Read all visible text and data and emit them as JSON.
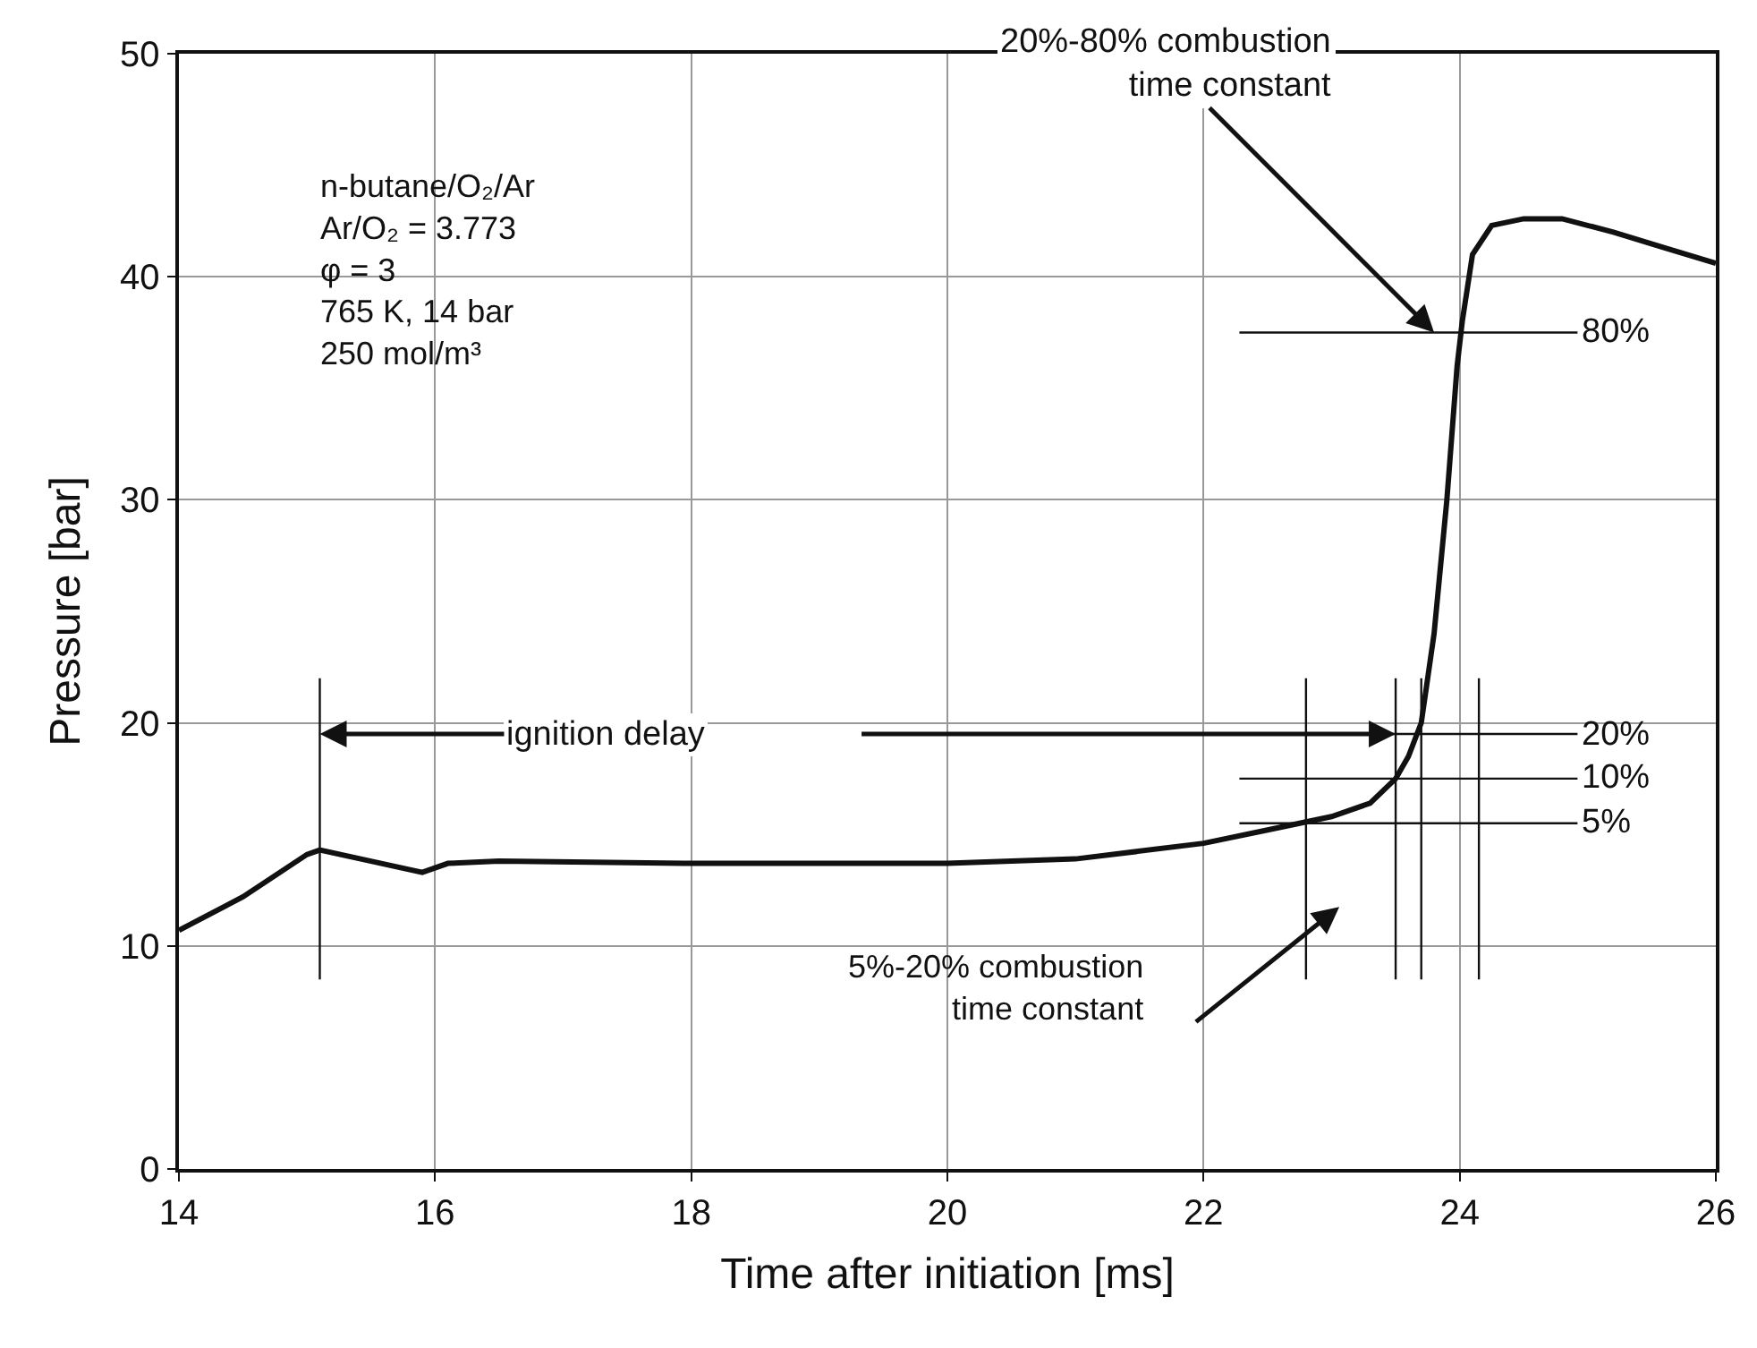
{
  "chart_data": {
    "type": "line",
    "xlabel": "Time after initiation [ms]",
    "ylabel": "Pressure [bar]",
    "x": [
      14,
      14.5,
      15,
      15.1,
      15.5,
      15.9,
      16.1,
      16.5,
      18,
      20,
      21,
      22,
      22.5,
      23,
      23.3,
      23.5,
      23.6,
      23.7,
      23.8,
      23.9,
      23.98,
      24.02,
      24.1,
      24.25,
      24.5,
      24.8,
      25.2,
      25.6,
      26
    ],
    "series": [
      {
        "color": "#111111",
        "values": [
          10.7,
          12.2,
          14.1,
          14.3,
          13.8,
          13.3,
          13.7,
          13.8,
          13.7,
          13.7,
          13.9,
          14.6,
          15.2,
          15.8,
          16.4,
          17.5,
          18.5,
          20,
          24,
          30,
          36,
          38,
          41,
          42.3,
          42.6,
          42.6,
          42,
          41.3,
          40.6
        ]
      }
    ],
    "xlim": [
      14,
      26
    ],
    "xticks": [
      14,
      16,
      18,
      20,
      22,
      24,
      26
    ],
    "ylim": [
      0,
      50
    ],
    "yticks": [
      0,
      10,
      20,
      30,
      40,
      50
    ],
    "grid": true,
    "marker": "none",
    "line_style": "solid",
    "ref_lines": [
      {
        "axis": "y",
        "value": 37.5
      },
      {
        "axis": "y",
        "value": 19.5
      },
      {
        "axis": "y",
        "value": 17.5
      },
      {
        "axis": "y",
        "value": 15.5
      },
      {
        "axis": "x",
        "value": 15.1
      },
      {
        "axis": "x",
        "value": 22.8
      },
      {
        "axis": "x",
        "value": 23.5
      },
      {
        "axis": "x",
        "value": 23.7
      },
      {
        "axis": "x",
        "value": 24.15
      }
    ],
    "annotations": [
      "n-butane/O₂/Ar\nAr/O₂ = 3.773\nφ = 3\n765 K, 14 bar\n250 mol/m³",
      {
        "text": "ignition delay",
        "x": 15.1,
        "y": 19.5
      },
      {
        "text": "20%-80% combustion\ntime constant",
        "x": 23.8,
        "y": 37.5
      },
      "5%-20% combustion\ntime constant",
      "80%",
      "20%",
      "10%",
      "5%"
    ]
  }
}
